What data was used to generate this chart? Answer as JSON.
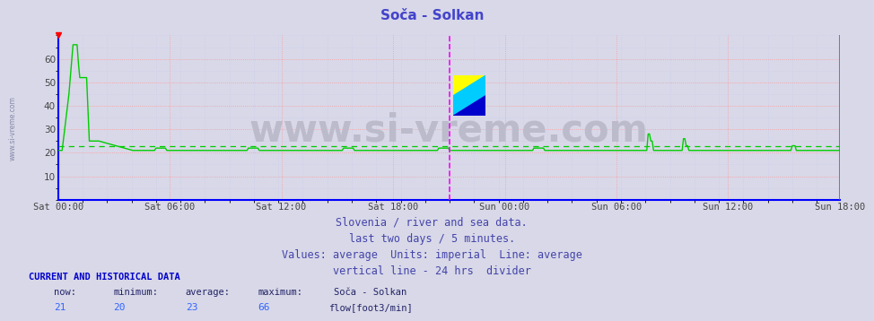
{
  "title": "Soča - Solkan",
  "title_color": "#4444cc",
  "title_fontsize": 11,
  "background_color": "#d8d8e8",
  "plot_bg_color": "#d8d8e8",
  "ylim": [
    0,
    70
  ],
  "yticks": [
    10,
    20,
    30,
    40,
    50,
    60
  ],
  "grid_color_major": "#ff9999",
  "grid_color_minor": "#ccccee",
  "line_color": "#00cc00",
  "line_width": 1.0,
  "avg_line_color": "#00cc00",
  "avg_value": 23,
  "border_color_left": "#0000ff",
  "border_color_bottom": "#0000ff",
  "border_color_right": "#ff00ff",
  "divider_color": "#ff00ff",
  "x_tick_labels": [
    "Sat 00:00",
    "Sat 06:00",
    "Sat 12:00",
    "Sat 18:00",
    "Sun 00:00",
    "Sun 06:00",
    "Sun 12:00",
    "Sun 18:00"
  ],
  "subtitle_lines": [
    "Slovenia / river and sea data.",
    "last two days / 5 minutes.",
    "Values: average  Units: imperial  Line: average",
    "vertical line - 24 hrs  divider"
  ],
  "subtitle_color": "#4444aa",
  "subtitle_fontsize": 8.5,
  "footer_label1": "CURRENT AND HISTORICAL DATA",
  "footer_color1": "#0000cc",
  "footer_col_headers": [
    "now:",
    "minimum:",
    "average:",
    "maximum:",
    "Soča - Solkan"
  ],
  "footer_values": [
    "21",
    "20",
    "23",
    "66"
  ],
  "footer_series_label": "flow[foot3/min]",
  "footer_series_color": "#00bb00",
  "watermark_text": "www.si-vreme.com",
  "watermark_color": "#bbbbcc",
  "watermark_fontsize": 30,
  "side_watermark_color": "#8888aa",
  "now_marker_color": "#ff0000"
}
